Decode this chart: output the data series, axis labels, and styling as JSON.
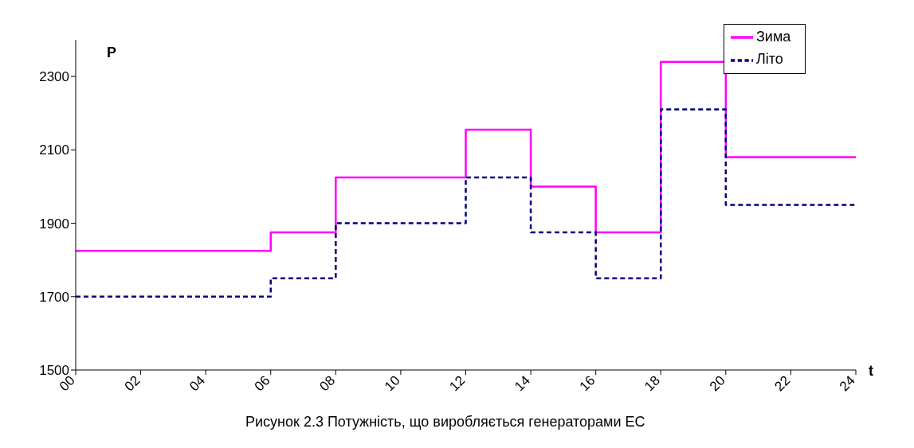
{
  "chart_data": {
    "type": "step",
    "title": "Рисунок 2.3 Потужність, що виробляється генераторами ЕС",
    "xlabel": "t",
    "ylabel": "P",
    "x": [
      0,
      6,
      8,
      12,
      14,
      16,
      18,
      20,
      24
    ],
    "series": [
      {
        "name": "Зима",
        "color": "#ff00ff",
        "line_style": "solid",
        "values": [
          1825,
          1875,
          2025,
          2155,
          2000,
          1875,
          2340,
          2080,
          2080
        ]
      },
      {
        "name": "Літо",
        "color": "#000080",
        "line_style": "dashed",
        "values": [
          1700,
          1750,
          1900,
          2025,
          1875,
          1750,
          2210,
          1950,
          1950
        ]
      }
    ],
    "xlim": [
      0,
      24
    ],
    "xticks": [
      {
        "value": 0,
        "label": "00"
      },
      {
        "value": 2,
        "label": "02"
      },
      {
        "value": 4,
        "label": "04"
      },
      {
        "value": 6,
        "label": "06"
      },
      {
        "value": 8,
        "label": "08"
      },
      {
        "value": 10,
        "label": "10"
      },
      {
        "value": 12,
        "label": "12"
      },
      {
        "value": 14,
        "label": "14"
      },
      {
        "value": 16,
        "label": "16"
      },
      {
        "value": 18,
        "label": "18"
      },
      {
        "value": 20,
        "label": "20"
      },
      {
        "value": 22,
        "label": "22"
      },
      {
        "value": 24,
        "label": "24"
      }
    ],
    "ylim": [
      1500,
      2400
    ],
    "yticks": [
      1500,
      1700,
      1900,
      2100,
      2300
    ],
    "grid": false,
    "legend": "top right",
    "marker": "none"
  }
}
